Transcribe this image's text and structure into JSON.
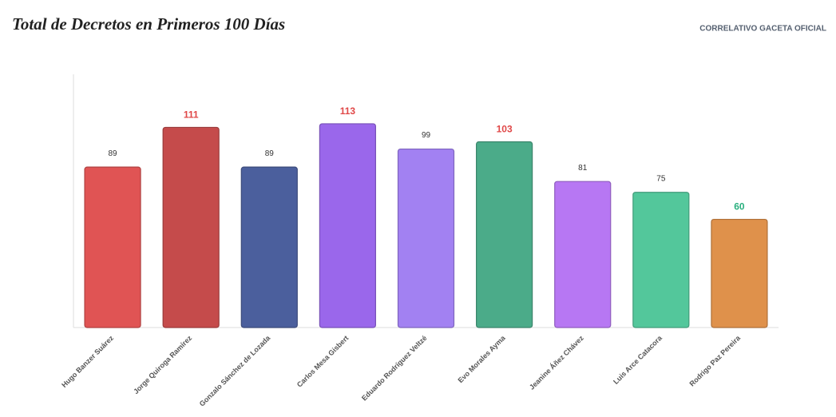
{
  "chart_data": {
    "type": "bar",
    "title": "Total de Decretos en Primeros 100 Días",
    "source_label": "CORRELATIVO GACETA OFICIAL",
    "categories": [
      "Hugo Banzer Suárez",
      "Jorge Quiroga Ramírez",
      "Gonzalo Sánchez de Lozada",
      "Carlos Mesa Gisbert",
      "Eduardo Rodríguez Veltzé",
      "Evo Morales Ayma",
      "Jeanine Áñez Chávez",
      "Luis Arce Catacora",
      "Rodrigo Paz Pereira"
    ],
    "values": [
      89,
      111,
      89,
      113,
      99,
      103,
      81,
      75,
      60
    ],
    "colors": [
      "#e05454",
      "#c54b4b",
      "#4b5f9d",
      "#9a67eb",
      "#a281f2",
      "#4bab89",
      "#b777f3",
      "#53c79b",
      "#df914b"
    ],
    "label_colors": [
      "#333333",
      "#e04848",
      "#333333",
      "#e04848",
      "#333333",
      "#e04848",
      "#333333",
      "#333333",
      "#2bb07f"
    ],
    "ylim": [
      0,
      140
    ]
  }
}
